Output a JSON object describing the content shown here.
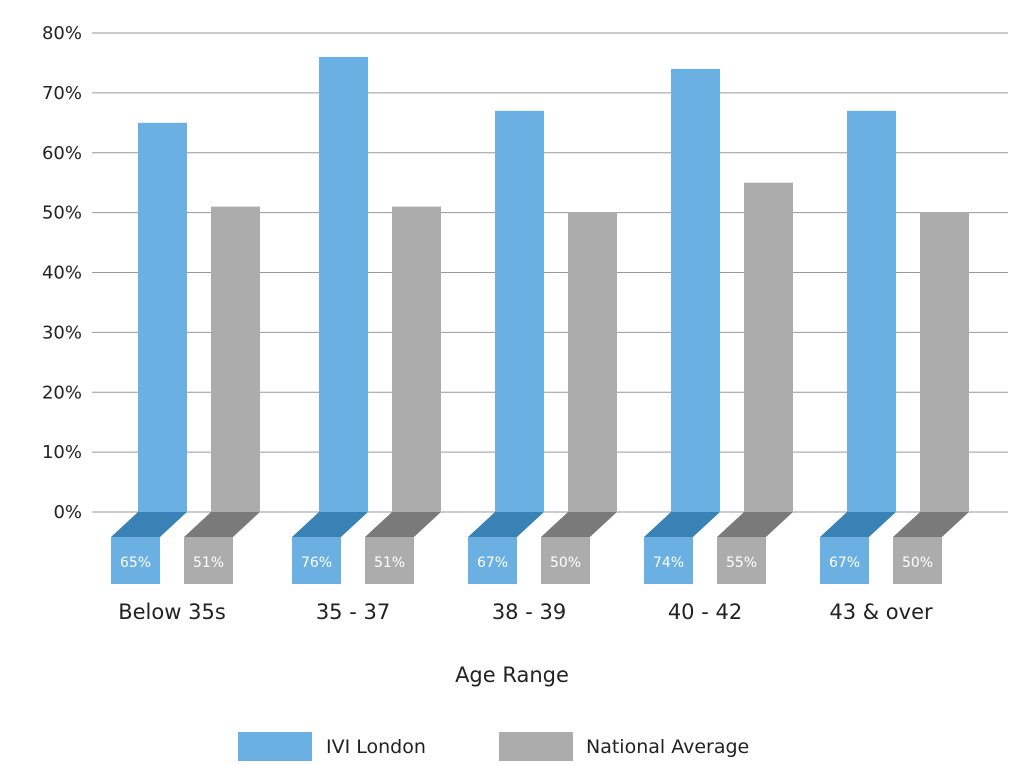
{
  "chart_data": {
    "type": "bar",
    "categories": [
      "Below 35s",
      "35 - 37",
      "38 - 39",
      "40 - 42",
      "43 & over"
    ],
    "series": [
      {
        "name": "IVI London",
        "values": [
          65,
          76,
          67,
          74,
          67
        ],
        "labels": [
          "65%",
          "76%",
          "67%",
          "74%",
          "67%"
        ],
        "color": "#6ab0e3",
        "shade": "#3a82b5"
      },
      {
        "name": "National Average",
        "values": [
          51,
          51,
          50,
          55,
          50
        ],
        "labels": [
          "51%",
          "51%",
          "50%",
          "55%",
          "50%"
        ],
        "color": "#acacac",
        "shade": "#7a7a7a"
      }
    ],
    "ylim": [
      0,
      80
    ],
    "yticks": [
      0,
      10,
      20,
      30,
      40,
      50,
      60,
      70,
      80
    ],
    "ytick_labels": [
      "0%",
      "10%",
      "20%",
      "30%",
      "40%",
      "50%",
      "60%",
      "70%",
      "80%"
    ],
    "xlabel": "Age Range",
    "ylabel": "",
    "title": "",
    "grid": true,
    "legend_position": "bottom-center"
  }
}
